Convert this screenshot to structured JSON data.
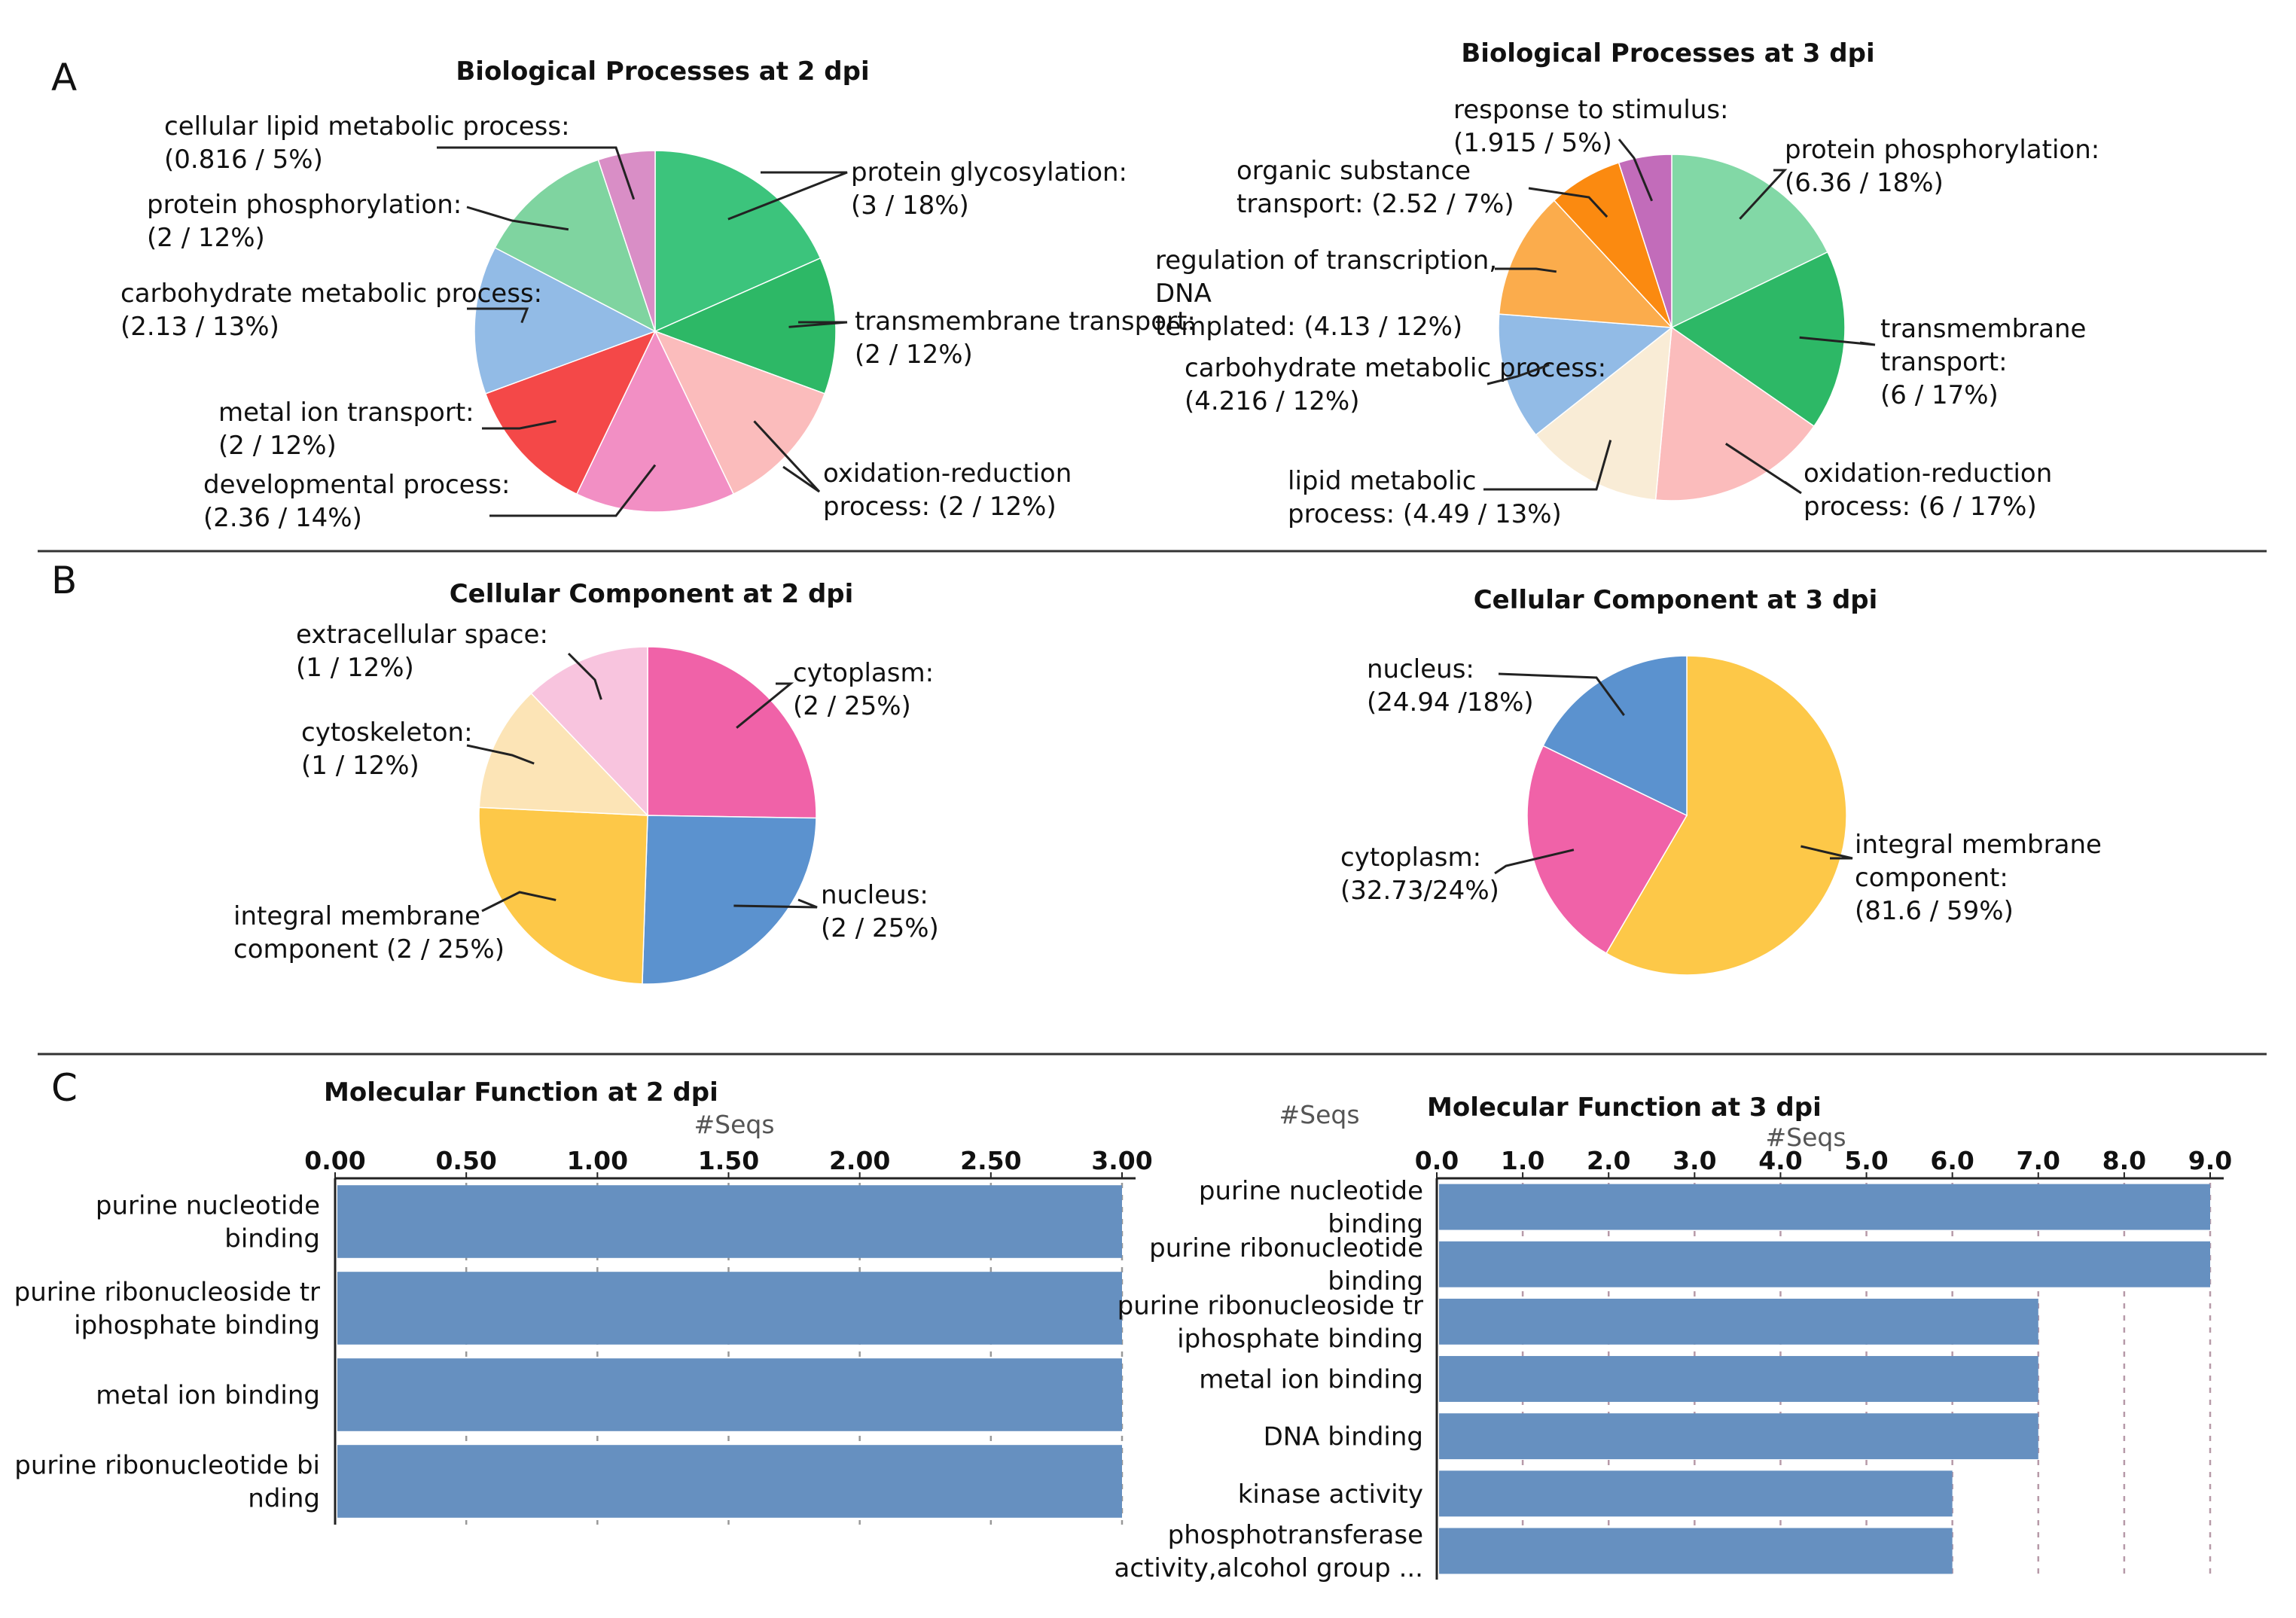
{
  "panels": {
    "a": "A",
    "b": "B",
    "c": "C"
  },
  "chart_data": [
    {
      "id": "bp2",
      "type": "pie",
      "title": "Biological Processes at 2 dpi",
      "slices": [
        {
          "label": "protein glycosylation: (3 / 18%)",
          "value": 3,
          "percent": 18,
          "color": "#3cc47c"
        },
        {
          "label": "transmembrane transport: (2 / 12%)",
          "value": 2,
          "percent": 12,
          "color": "#2db866"
        },
        {
          "label": "oxidation-reduction process: (2 / 12%)",
          "value": 2,
          "percent": 12,
          "color": "#fbbcbc"
        },
        {
          "label": "developmental process: (2.36 / 14%)",
          "value": 2.36,
          "percent": 14,
          "color": "#f28fc4"
        },
        {
          "label": "metal ion transport: (2 / 12%)",
          "value": 2,
          "percent": 12,
          "color": "#f44848"
        },
        {
          "label": "carbohydrate metabolic process: (2.13 / 13%)",
          "value": 2.13,
          "percent": 13,
          "color": "#92bbe6"
        },
        {
          "label": "protein phosphorylation: (2 / 12%)",
          "value": 2,
          "percent": 12,
          "color": "#7fd4a0"
        },
        {
          "label": "cellular lipid metabolic process: (0.816 / 5%)",
          "value": 0.816,
          "percent": 5,
          "color": "#d98ec6"
        }
      ]
    },
    {
      "id": "bp3",
      "type": "pie",
      "title": "Biological Processes at 3 dpi",
      "slices": [
        {
          "label": "protein phosphorylation: (6.36 / 18%)",
          "value": 6.36,
          "percent": 18,
          "color": "#82d8a6"
        },
        {
          "label": "transmembrane transport: (6 / 17%)",
          "value": 6,
          "percent": 17,
          "color": "#2db866"
        },
        {
          "label": "oxidation-reduction process: (6 / 17%)",
          "value": 6,
          "percent": 17,
          "color": "#fbbcbc"
        },
        {
          "label": "lipid metabolic process: (4.49 / 13%)",
          "value": 4.49,
          "percent": 13,
          "color": "#f9ecd6"
        },
        {
          "label": "carbohydrate metabolic process: (4.216 / 12%)",
          "value": 4.216,
          "percent": 12,
          "color": "#92bbe6"
        },
        {
          "label": "regulation of transcription, DNA templated: (4.13 / 12%)",
          "value": 4.13,
          "percent": 12,
          "color": "#fbac4c"
        },
        {
          "label": "organic substance transport: (2.52 / 7%)",
          "value": 2.52,
          "percent": 7,
          "color": "#fb8a10"
        },
        {
          "label": "response to stimulus: (1.915 / 5%)",
          "value": 1.915,
          "percent": 5,
          "color": "#c26cba"
        }
      ]
    },
    {
      "id": "cc2",
      "type": "pie",
      "title": "Cellular Component at 2 dpi",
      "slices": [
        {
          "label": "cytoplasm: (2 / 25%)",
          "value": 2,
          "percent": 25,
          "color": "#f062a8"
        },
        {
          "label": "nucleus: (2 / 25%)",
          "value": 2,
          "percent": 25,
          "color": "#5b92cf"
        },
        {
          "label": "integral membrane component (2 / 25%)",
          "value": 2,
          "percent": 25,
          "color": "#fdc848"
        },
        {
          "label": "cytoskeleton: (1 / 12%)",
          "value": 1,
          "percent": 12,
          "color": "#fce4b6"
        },
        {
          "label": "extracellular space: (1 / 12%)",
          "value": 1,
          "percent": 12,
          "color": "#f8c4de"
        }
      ]
    },
    {
      "id": "cc3",
      "type": "pie",
      "title": "Cellular Component at 3 dpi",
      "slices": [
        {
          "label": "integral membrane component: (81.6 / 59%)",
          "value": 81.6,
          "percent": 59,
          "color": "#fdc848"
        },
        {
          "label": "cytoplasm: (32.73/24%)",
          "value": 32.73,
          "percent": 24,
          "color": "#f062a8"
        },
        {
          "label": "nucleus: (24.94 /18%)",
          "value": 24.94,
          "percent": 18,
          "color": "#5b92cf"
        }
      ]
    },
    {
      "id": "mf2",
      "type": "bar",
      "orientation": "horizontal",
      "title": "Molecular Function at 2 dpi",
      "xlabel": "#Seqs",
      "xlim": [
        0,
        3
      ],
      "ticks": [
        "0.00",
        "0.50",
        "1.00",
        "1.50",
        "2.00",
        "2.50",
        "3.00"
      ],
      "categories": [
        "purine nucleotide binding",
        "purine ribonucleoside triphosphate binding",
        "metal ion binding",
        "purine ribonucleotide binding"
      ],
      "values": [
        3,
        3,
        3,
        3
      ],
      "color": "#6690c0"
    },
    {
      "id": "mf3",
      "type": "bar",
      "orientation": "horizontal",
      "title": "Molecular Function  at 3 dpi",
      "xlabel": "#Seqs",
      "extra_label": "#Seqs",
      "xlim": [
        0,
        9
      ],
      "ticks": [
        "0.0",
        "1.0",
        "2.0",
        "3.0",
        "4.0",
        "5.0",
        "6.0",
        "7.0",
        "8.0",
        "9.0"
      ],
      "categories": [
        "purine nucleotide binding",
        "purine ribonucleotide binding",
        "purine ribonucleoside triphosphate binding",
        "metal ion binding",
        "DNA binding",
        "kinase activity",
        "phosphotransferase activity,alcohol group ..."
      ],
      "values": [
        9,
        9,
        7,
        7,
        7,
        6,
        6
      ],
      "color": "#6690c0"
    }
  ]
}
